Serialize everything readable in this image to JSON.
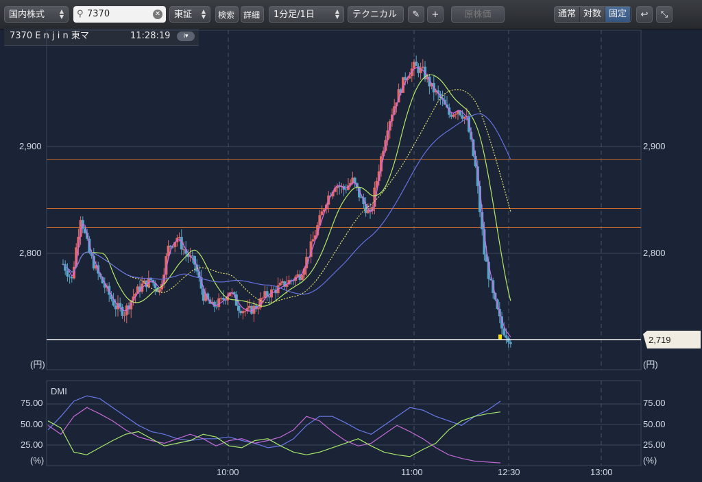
{
  "toolbar": {
    "market": "国内株式",
    "search_value": "7370",
    "exchange": "東証",
    "search_button": "検索",
    "detail_button": "詳細",
    "interval": "1分足/1日",
    "technical": "テクニカル",
    "adjusted_price": "原株価",
    "scale_normal": "通常",
    "scale_log": "対数",
    "scale_fixed": "固定"
  },
  "info": {
    "code": "7370",
    "name": "E n j i n",
    "market": "東マ",
    "time": "11:28:19"
  },
  "price_panel": {
    "unit_label": "(円)",
    "current_price_label": "2,719"
  },
  "dmi_panel": {
    "title": "DMI",
    "unit_label": "(%)"
  },
  "colors": {
    "background": "#1a2436",
    "candle_up": "#e06a6a",
    "candle_down": "#5aa3c8",
    "ma_short": "#d36be8",
    "ma_mid": "#b6e868",
    "ma_long": "#6670e0",
    "ma_dotted": "#e8e070",
    "plus_di": "#c46ad8",
    "minus_di": "#a8e86a",
    "adx": "#6a78e8",
    "hline": "#c96a2e"
  },
  "chart_data": [
    {
      "type": "candlestick",
      "title": "",
      "x_ticks": [
        "10:00",
        "11:00",
        "12:30",
        "13:00"
      ],
      "y_ticks": [
        "2,800",
        "2,900"
      ],
      "ylim": [
        2700,
        3010
      ],
      "current_price": 2719,
      "horizontal_levels": [
        2888,
        2842,
        2824
      ],
      "close_path": [
        [
          0,
          2790
        ],
        [
          0.5,
          2775
        ],
        [
          1,
          2835
        ],
        [
          1.5,
          2800
        ],
        [
          2,
          2780
        ],
        [
          2.5,
          2765
        ],
        [
          3,
          2750
        ],
        [
          3.5,
          2745
        ],
        [
          4,
          2760
        ],
        [
          4.5,
          2770
        ],
        [
          5,
          2775
        ],
        [
          5.5,
          2765
        ],
        [
          6,
          2805
        ],
        [
          6.5,
          2815
        ],
        [
          7,
          2800
        ],
        [
          7.5,
          2790
        ],
        [
          8,
          2760
        ],
        [
          8.5,
          2750
        ],
        [
          9,
          2755
        ],
        [
          9.5,
          2765
        ],
        [
          10,
          2750
        ],
        [
          10.5,
          2745
        ],
        [
          11,
          2750
        ],
        [
          11.5,
          2760
        ],
        [
          12,
          2765
        ],
        [
          12.5,
          2770
        ],
        [
          13,
          2775
        ],
        [
          13.5,
          2780
        ],
        [
          14,
          2800
        ],
        [
          14.5,
          2825
        ],
        [
          15,
          2850
        ],
        [
          15.5,
          2865
        ],
        [
          16,
          2860
        ],
        [
          16.5,
          2868
        ],
        [
          17,
          2850
        ],
        [
          17.5,
          2835
        ],
        [
          18,
          2880
        ],
        [
          18.5,
          2920
        ],
        [
          19,
          2945
        ],
        [
          19.5,
          2965
        ],
        [
          20,
          2975
        ],
        [
          20.5,
          2970
        ],
        [
          21,
          2955
        ],
        [
          21.5,
          2945
        ],
        [
          22,
          2930
        ],
        [
          22.5,
          2935
        ],
        [
          23,
          2925
        ],
        [
          23.5,
          2880
        ],
        [
          24,
          2800
        ],
        [
          24.5,
          2760
        ],
        [
          25,
          2730
        ],
        [
          25.5,
          2719
        ]
      ]
    },
    {
      "type": "line",
      "title": "DMI",
      "y_ticks": [
        "25.00",
        "50.00",
        "75.00"
      ],
      "ylim": [
        0,
        95
      ],
      "series": []
    }
  ]
}
